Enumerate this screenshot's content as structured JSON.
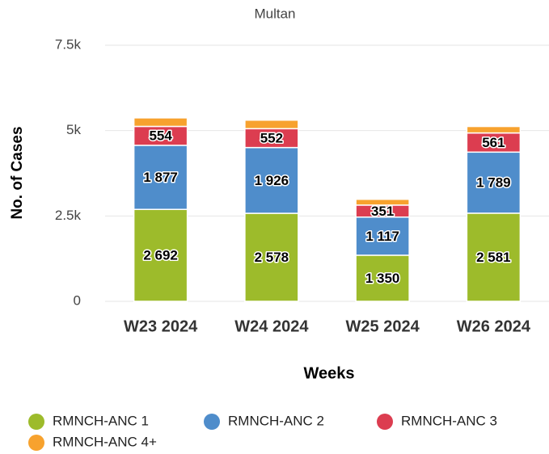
{
  "chart_data": {
    "type": "stacked_bar",
    "title": "Multan",
    "x_label": "Weeks",
    "y_label": "No. of Cases",
    "categories": [
      "W23 2024",
      "W24 2024",
      "W25 2024",
      "W26 2024"
    ],
    "series": [
      {
        "name": "RMNCH-ANC 1",
        "color": "#9dbb2b",
        "values": [
          2692,
          2578,
          1350,
          2581
        ],
        "value_labels": [
          "2 692",
          "2 578",
          "1 350",
          "2 581"
        ]
      },
      {
        "name": "RMNCH-ANC 2",
        "color": "#4f8dcb",
        "values": [
          1877,
          1926,
          1117,
          1789
        ],
        "value_labels": [
          "1 877",
          "1 926",
          "1 117",
          "1 789"
        ]
      },
      {
        "name": "RMNCH-ANC 3",
        "color": "#dc3d50",
        "values": [
          554,
          552,
          351,
          561
        ]
      },
      {
        "name": "RMNCH-ANC 4+",
        "color": "#f7a22e",
        "values": [
          250,
          250,
          170,
          190
        ]
      }
    ],
    "ylim": [
      0,
      7500
    ],
    "yticks": [
      0,
      {
        "value": 2500,
        "label": "2.5k"
      },
      {
        "value": 5000,
        "label": "5k"
      },
      {
        "value": 7500,
        "label": "7.5k"
      }
    ],
    "grid": true,
    "legend": "bottom"
  }
}
